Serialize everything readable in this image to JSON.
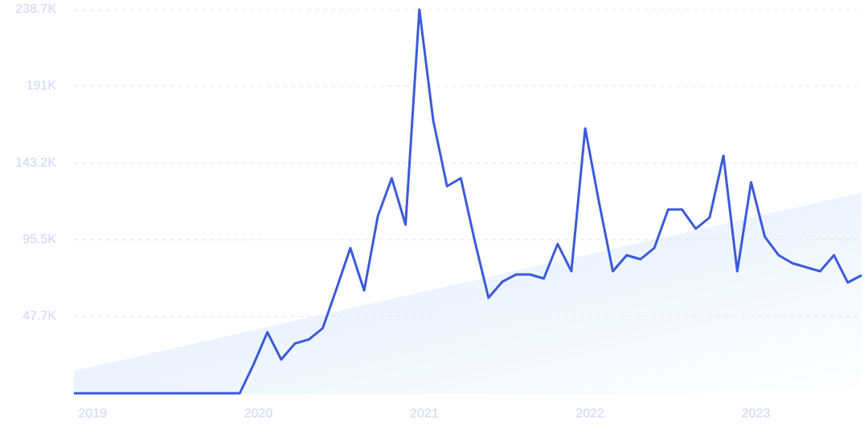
{
  "chart_data": {
    "type": "line",
    "color": "#3a5bd9",
    "grid": true,
    "categories": [
      null,
      "2019",
      null,
      null,
      null,
      null,
      null,
      null,
      null,
      null,
      null,
      null,
      null,
      "2020",
      null,
      null,
      null,
      null,
      null,
      null,
      null,
      null,
      null,
      null,
      null,
      "2021",
      null,
      null,
      null,
      null,
      null,
      null,
      null,
      null,
      null,
      null,
      null,
      "2022",
      null,
      null,
      null,
      null,
      null,
      null,
      null,
      null,
      null,
      null,
      null,
      "2023",
      null,
      null,
      null,
      null,
      null,
      null,
      null,
      null
    ],
    "values": [
      0,
      0,
      0,
      0,
      0,
      0,
      0,
      0,
      0,
      0,
      0,
      0,
      0,
      18000,
      38000,
      21000,
      31000,
      33500,
      40450,
      65000,
      90390,
      63920,
      110360,
      133830,
      104870,
      238700,
      169790,
      128840,
      133830,
      95000,
      59420,
      69410,
      73910,
      73910,
      71410,
      92880,
      75900,
      164790,
      118850,
      75900,
      85890,
      83390,
      90390,
      114350,
      114350,
      102370,
      109360,
      147810,
      75900,
      131330,
      97370,
      85890,
      80900,
      78400,
      75900,
      85890,
      68910,
      73410
    ],
    "ylim": [
      0,
      238700
    ],
    "yticks": [
      {
        "value": 47700,
        "label": "47.7K"
      },
      {
        "value": 95500,
        "label": "95.5K"
      },
      {
        "value": 143200,
        "label": "143.2K"
      },
      {
        "value": 191000,
        "label": "191K"
      },
      {
        "value": 238700,
        "label": "238.7K"
      }
    ]
  }
}
